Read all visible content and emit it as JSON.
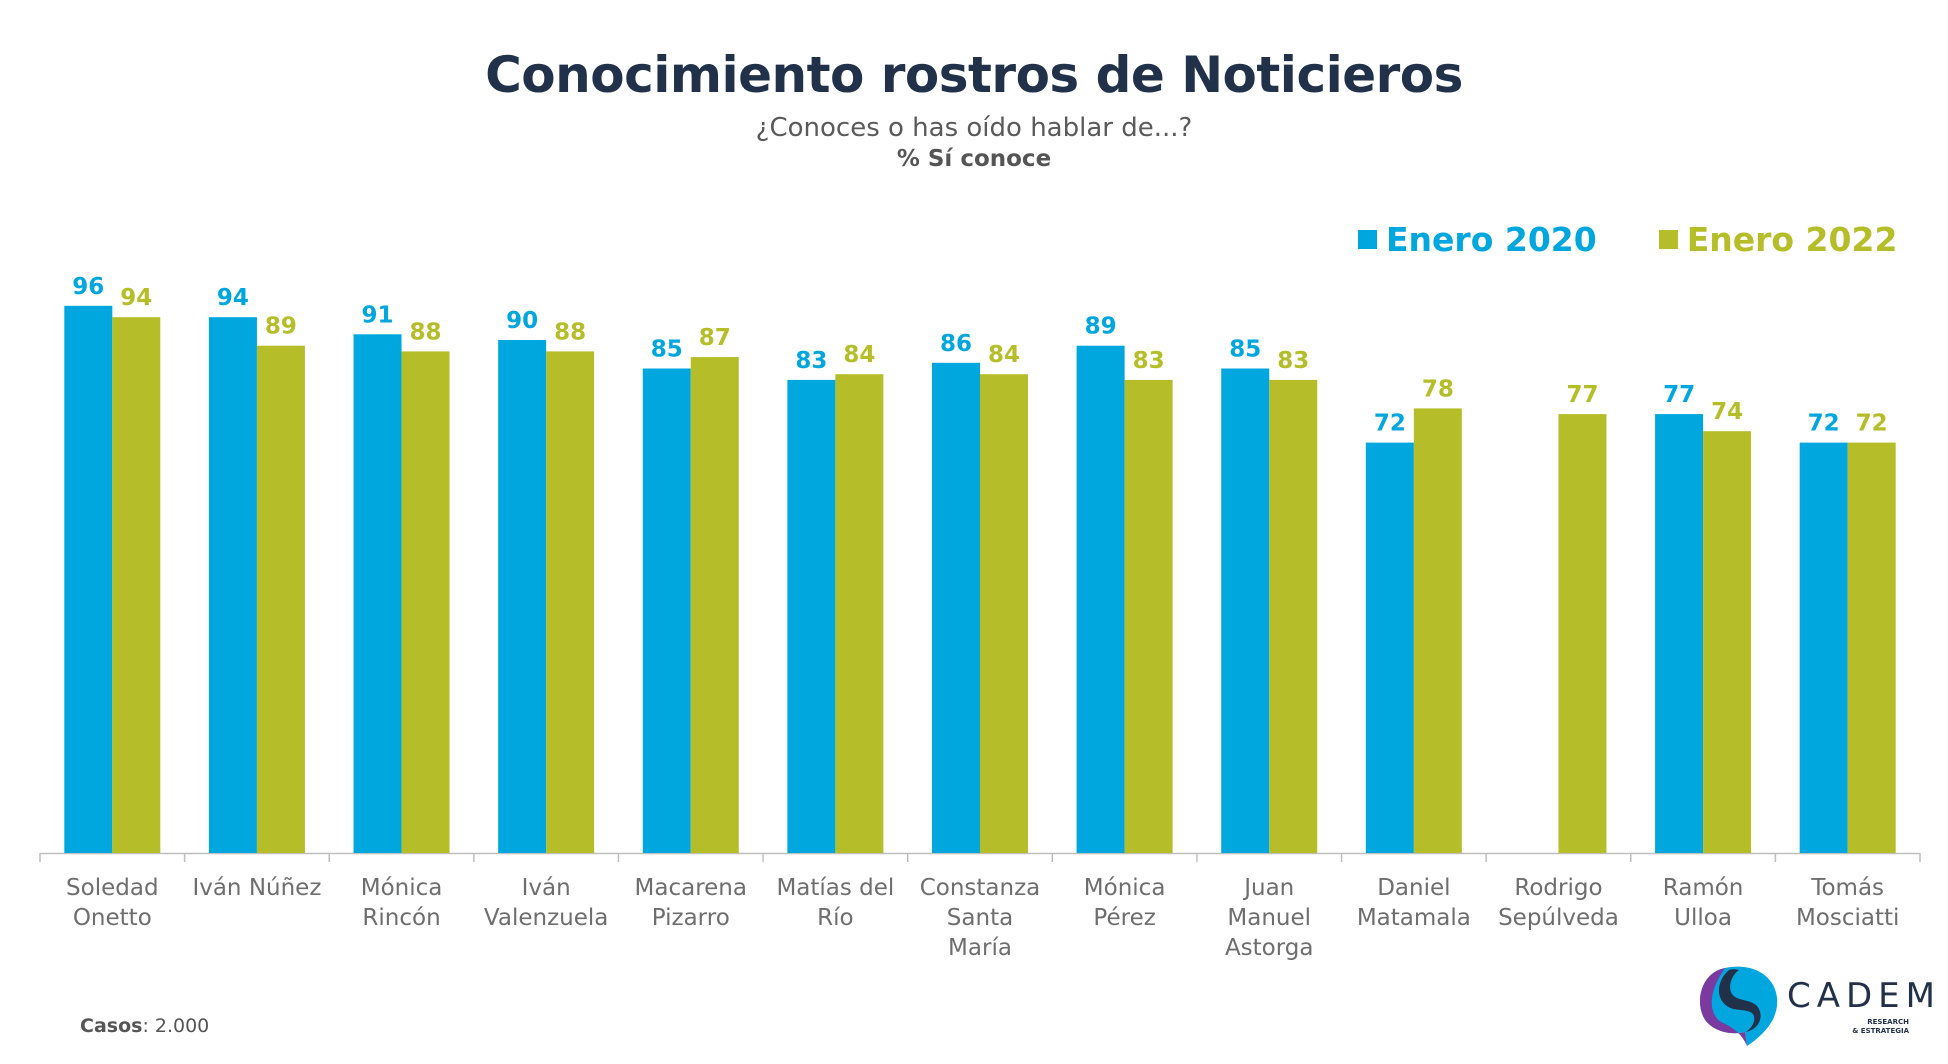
{
  "colors": {
    "series_2020": "#00a6de",
    "series_2022": "#b5be28",
    "title": "#22314a",
    "axis": "#bfbfbf",
    "category_text": "#6e6e6e"
  },
  "footer": {
    "label": "Casos",
    "value": ": 2.000"
  },
  "logo": {
    "name": "CADEM",
    "sub_line1": "RESEARCH",
    "sub_line2": "& ESTRATEGIA"
  },
  "chart_data": {
    "type": "bar",
    "title": "Conocimiento rostros de Noticieros",
    "subtitle": "¿Conoces o has oído hablar de...?",
    "unit_label": "% Sí conoce",
    "xlabel": "",
    "ylabel": "",
    "ylim": [
      0,
      100
    ],
    "grid": false,
    "legend_position": "top-right",
    "categories": [
      [
        "Soledad",
        "Onetto"
      ],
      [
        "Iván Núñez"
      ],
      [
        "Mónica",
        "Rincón"
      ],
      [
        "Iván",
        "Valenzuela"
      ],
      [
        "Macarena",
        "Pizarro"
      ],
      [
        "Matías del",
        "Río"
      ],
      [
        "Constanza",
        "Santa",
        "María"
      ],
      [
        "Mónica",
        "Pérez"
      ],
      [
        "Juan",
        "Manuel",
        "Astorga"
      ],
      [
        "Daniel",
        "Matamala"
      ],
      [
        "Rodrigo",
        "Sepúlveda"
      ],
      [
        "Ramón",
        "Ulloa"
      ],
      [
        "Tomás",
        "Mosciatti"
      ]
    ],
    "series": [
      {
        "name": "Enero 2020",
        "values": [
          96,
          94,
          91,
          90,
          85,
          83,
          86,
          89,
          85,
          72,
          null,
          77,
          72
        ]
      },
      {
        "name": "Enero 2022",
        "values": [
          94,
          89,
          88,
          88,
          87,
          84,
          84,
          83,
          83,
          78,
          77,
          74,
          72
        ]
      }
    ]
  }
}
